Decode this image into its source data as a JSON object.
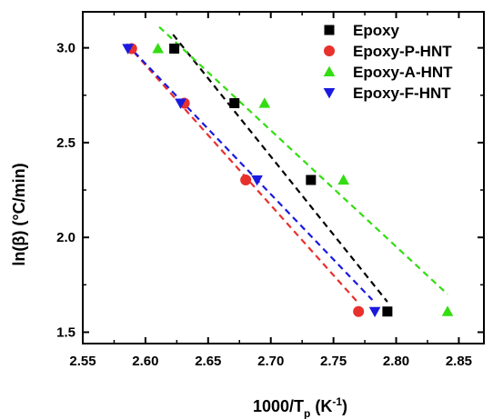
{
  "chart_data": {
    "type": "scatter",
    "xlabel": {
      "main": "1000/T",
      "sub": "p",
      "unit": " (K",
      "sup": "-1",
      "close": ")"
    },
    "ylabel": "ln(β) (°C/min)",
    "xlim": [
      2.55,
      2.87
    ],
    "ylim": [
      1.44,
      3.19
    ],
    "xticks": [
      "2.55",
      "2.60",
      "2.65",
      "2.70",
      "2.75",
      "2.80",
      "2.85"
    ],
    "yticks": [
      "1.5",
      "2.0",
      "2.5",
      "3.0"
    ],
    "legend_position": "top-right",
    "grid": false,
    "series": [
      {
        "name": "Epoxy",
        "marker": "square",
        "color": "#000000",
        "points": [
          [
            2.623,
            2.996
          ],
          [
            2.671,
            2.708
          ],
          [
            2.732,
            2.303
          ],
          [
            2.793,
            1.609
          ]
        ],
        "fit": [
          [
            2.622,
            3.07
          ],
          [
            2.793,
            1.66
          ]
        ]
      },
      {
        "name": "Epoxy-P-HNT",
        "marker": "circle",
        "color": "#e8302c",
        "points": [
          [
            2.589,
            2.996
          ],
          [
            2.631,
            2.708
          ],
          [
            2.68,
            2.303
          ],
          [
            2.77,
            1.609
          ]
        ],
        "fit": [
          [
            2.585,
            3.02
          ],
          [
            2.769,
            1.66
          ]
        ]
      },
      {
        "name": "Epoxy-A-HNT",
        "marker": "triangle-up",
        "color": "#33dd11",
        "points": [
          [
            2.61,
            2.996
          ],
          [
            2.695,
            2.708
          ],
          [
            2.758,
            2.303
          ],
          [
            2.841,
            1.609
          ]
        ],
        "fit": [
          [
            2.611,
            3.11
          ],
          [
            2.841,
            1.7
          ]
        ]
      },
      {
        "name": "Epoxy-F-HNT",
        "marker": "triangle-down",
        "color": "#1a1adf",
        "points": [
          [
            2.586,
            2.996
          ],
          [
            2.628,
            2.708
          ],
          [
            2.689,
            2.303
          ],
          [
            2.783,
            1.609
          ]
        ],
        "fit": [
          [
            2.585,
            3.02
          ],
          [
            2.781,
            1.67
          ]
        ]
      }
    ]
  }
}
